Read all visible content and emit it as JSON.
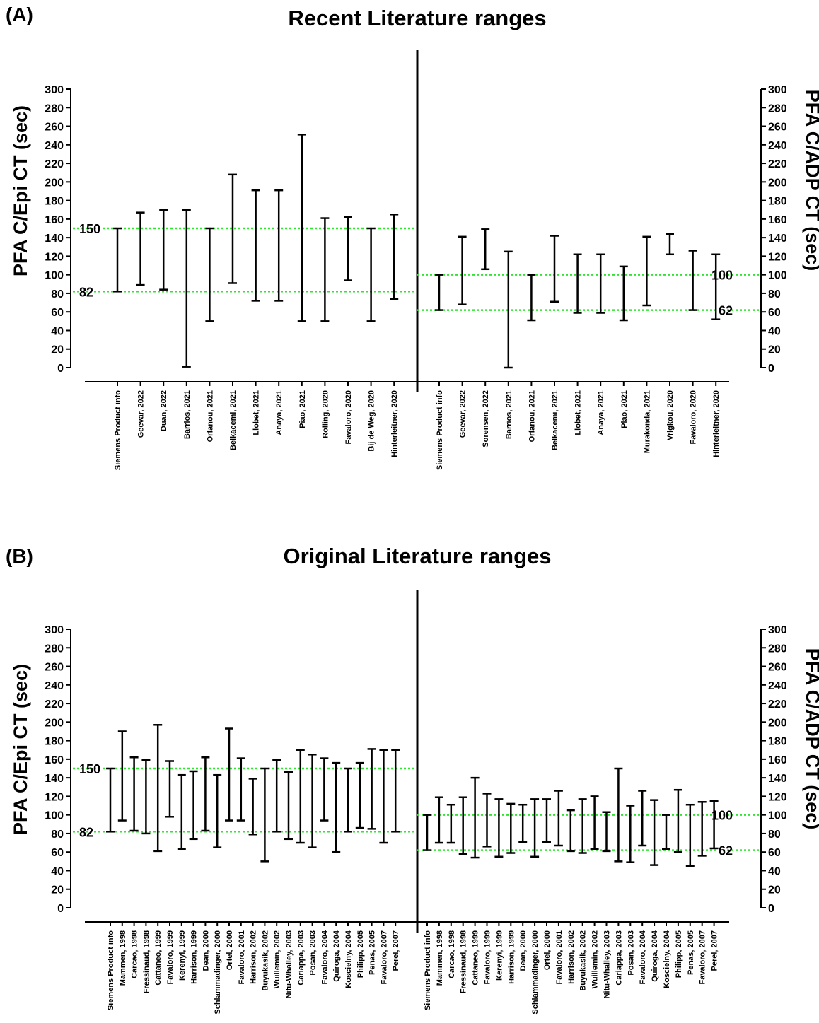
{
  "chart_data": [
    {
      "type": "range",
      "panel_label": "(A)",
      "title": "Recent Literature ranges",
      "ylabel_left": "PFA C/Epi CT (sec)",
      "ylabel_right": "PFA C/ADP CT (sec)",
      "ylim": [
        0,
        300
      ],
      "y_ticks": [
        "0",
        "20",
        "40",
        "60",
        "80",
        "100",
        "120",
        "140",
        "160",
        "180",
        "200",
        "220",
        "240",
        "260",
        "280",
        "300"
      ],
      "left": {
        "reference_lines": [
          {
            "value": 82,
            "label": "82",
            "color": "#2ee62e"
          },
          {
            "value": 150,
            "label": "150",
            "color": "#2ee62e"
          }
        ],
        "categories": [
          "Siemens Product info",
          "Geevar, 2022",
          "Duan, 2022",
          "Barrios, 2021",
          "Orfanou, 2021",
          "Belkacemi, 2021",
          "Llobet, 2021",
          "Anaya, 2021",
          "Piao, 2021",
          "Rolling, 2020",
          "Favaloro, 2020",
          "Bij de Weg, 2020",
          "Hinterleitner, 2020"
        ],
        "low": [
          82,
          89,
          84,
          1,
          50,
          91,
          72,
          72,
          50,
          50,
          94,
          50,
          74
        ],
        "high": [
          150,
          167,
          170,
          170,
          150,
          208,
          191,
          191,
          251,
          161,
          162,
          150,
          165
        ]
      },
      "right": {
        "reference_lines": [
          {
            "value": 62,
            "label": "62",
            "color": "#2ee62e"
          },
          {
            "value": 100,
            "label": "100",
            "color": "#2ee62e"
          }
        ],
        "categories": [
          "Siemens Product info",
          "Geevar, 2022",
          "Sorensen, 2022",
          "Barrios, 2021",
          "Orfanou, 2021",
          "Belkacemi, 2021",
          "Llobet, 2021",
          "Anaya, 2021",
          "Piao, 2021",
          "Murakonda, 2021",
          "Vrigkou, 2020",
          "Favaloro, 2020",
          "Hinterleitner, 2020"
        ],
        "low": [
          62,
          68,
          106,
          0,
          51,
          71,
          59,
          59,
          51,
          67,
          122,
          62,
          52
        ],
        "high": [
          100,
          141,
          149,
          125,
          100,
          142,
          122,
          122,
          109,
          141,
          144,
          126,
          122
        ]
      }
    },
    {
      "type": "range",
      "panel_label": "(B)",
      "title": "Original Literature ranges",
      "ylabel_left": "PFA C/Epi CT (sec)",
      "ylabel_right": "PFA C/ADP CT (sec)",
      "ylim": [
        0,
        300
      ],
      "y_ticks": [
        "0",
        "20",
        "40",
        "60",
        "80",
        "100",
        "120",
        "140",
        "160",
        "180",
        "200",
        "220",
        "240",
        "260",
        "280",
        "300"
      ],
      "left": {
        "reference_lines": [
          {
            "value": 82,
            "label": "82",
            "color": "#2ee62e"
          },
          {
            "value": 150,
            "label": "150",
            "color": "#2ee62e"
          }
        ],
        "categories": [
          "Siemens Product info",
          "Mammen, 1998",
          "Carcao, 1998",
          "Fressinaud, 1998",
          "Cattaneo, 1999",
          "Favaloro, 1999",
          "Kerenyi, 1999",
          "Harrison, 1999",
          "Dean, 2000",
          "Schlammadinger, 2000",
          "Ortel, 2000",
          "Favaloro, 2001",
          "Harrison, 2002",
          "Buyukasik, 2002",
          "Wuillemin, 2002",
          "Nitu-Whalley, 2003",
          "Cariappa, 2003",
          "Posan, 2003",
          "Favaloro, 2004",
          "Quiroga, 2004",
          "Koscielny, 2004",
          "Philipp, 2005",
          "Penas, 2005",
          "Favaloro, 2007",
          "Perel, 2007"
        ],
        "low": [
          82,
          94,
          83,
          80,
          61,
          98,
          63,
          74,
          83,
          65,
          94,
          94,
          79,
          50,
          82,
          74,
          70,
          65,
          94,
          60,
          82,
          86,
          85,
          70,
          82
        ],
        "high": [
          150,
          190,
          162,
          159,
          197,
          158,
          143,
          147,
          162,
          143,
          193,
          161,
          139,
          150,
          159,
          146,
          170,
          165,
          161,
          156,
          150,
          156,
          171,
          170,
          170
        ]
      },
      "right": {
        "reference_lines": [
          {
            "value": 62,
            "label": "62",
            "color": "#2ee62e"
          },
          {
            "value": 100,
            "label": "100",
            "color": "#2ee62e"
          }
        ],
        "categories": [
          "Siemens Product info",
          "Mammen, 1998",
          "Carcao, 1998",
          "Fressinaud, 1998",
          "Cattaneo, 1999",
          "Favaloro, 1999",
          "Kerenyi, 1999",
          "Harrison, 1999",
          "Dean, 2000",
          "Schlammadinger, 2000",
          "Ortel, 2000",
          "Favaloro, 2001",
          "Harrison, 2002",
          "Buyukasik, 2002",
          "Wuillemin, 2002",
          "Nitu-Whalley, 2003",
          "Cariappa, 2003",
          "Posan, 2003",
          "Favaloro, 2004",
          "Quiroga, 2004",
          "Koscielny, 2004",
          "Philipp, 2005",
          "Penas, 2005",
          "Favaloro, 2007",
          "Perel, 2007"
        ],
        "low": [
          62,
          70,
          70,
          58,
          54,
          66,
          55,
          59,
          71,
          55,
          71,
          67,
          61,
          59,
          63,
          61,
          50,
          49,
          67,
          46,
          63,
          60,
          45,
          56,
          64
        ],
        "high": [
          100,
          119,
          111,
          119,
          140,
          123,
          117,
          112,
          111,
          117,
          117,
          126,
          105,
          117,
          120,
          103,
          150,
          110,
          126,
          116,
          100,
          127,
          111,
          114,
          115
        ]
      }
    }
  ]
}
